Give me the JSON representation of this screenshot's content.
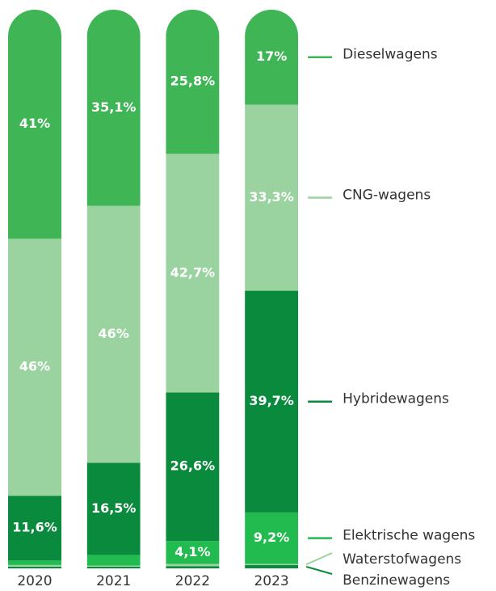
{
  "chart_data": {
    "type": "stacked-bar",
    "categories": [
      "2020",
      "2021",
      "2022",
      "2023"
    ],
    "ylim": [
      0,
      100
    ],
    "series": [
      {
        "name": "Benzinewagens",
        "color": "#0a8a3c",
        "values": [
          0.3,
          0.3,
          0.4,
          0.6
        ],
        "value_labels": [
          null,
          null,
          null,
          null
        ]
      },
      {
        "name": "Waterstofwagens",
        "color": "#9bd3a0",
        "values": [
          0.3,
          0.2,
          0.4,
          0.2
        ],
        "value_labels": [
          null,
          null,
          null,
          null
        ]
      },
      {
        "name": "Elektrische wagens",
        "color": "#22bb50",
        "values": [
          0.8,
          1.9,
          4.1,
          9.2
        ],
        "value_labels": [
          null,
          null,
          "4,1%",
          "9,2%"
        ]
      },
      {
        "name": "Hybridewagens",
        "color": "#0a8a3c",
        "values": [
          11.6,
          16.5,
          26.6,
          39.7
        ],
        "value_labels": [
          "11,6%",
          "16,5%",
          "26,6%",
          "39,7%"
        ]
      },
      {
        "name": "CNG-wagens",
        "color": "#9bd3a0",
        "values": [
          46,
          46,
          42.7,
          33.3
        ],
        "value_labels": [
          "46%",
          "46%",
          "42,7%",
          "33,3%"
        ]
      },
      {
        "name": "Dieselwagens",
        "color": "#3fb556",
        "values": [
          41,
          35.1,
          25.8,
          17
        ],
        "value_labels": [
          "41%",
          "35,1%",
          "25,8%",
          "17%"
        ]
      }
    ]
  }
}
